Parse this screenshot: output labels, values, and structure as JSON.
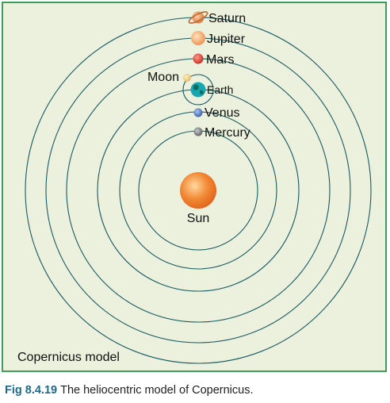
{
  "diagram": {
    "model_label": "Copernicus model",
    "sun": {
      "label": "Sun"
    },
    "moon": {
      "label": "Moon"
    },
    "planets": [
      {
        "key": "mercury",
        "label": "Mercury",
        "color": "#7a7d80"
      },
      {
        "key": "venus",
        "label": "Venus",
        "color": "#4a6fb4"
      },
      {
        "key": "earth",
        "label": "Earth",
        "color": "#1aa6b0"
      },
      {
        "key": "mars",
        "label": "Mars",
        "color": "#d93a2b"
      },
      {
        "key": "jupiter",
        "label": "Jupiter",
        "color": "#f0a060"
      },
      {
        "key": "saturn",
        "label": "Saturn",
        "color": "#e08a50"
      }
    ],
    "colors": {
      "panel_background": "#ebf1dc",
      "panel_border": "#3e9e58",
      "orbit": "#1a5a64",
      "sun": "#ef7d2a"
    }
  },
  "caption": {
    "figure_number": "Fig 8.4.19",
    "text": "The heliocentric model of Copernicus."
  }
}
